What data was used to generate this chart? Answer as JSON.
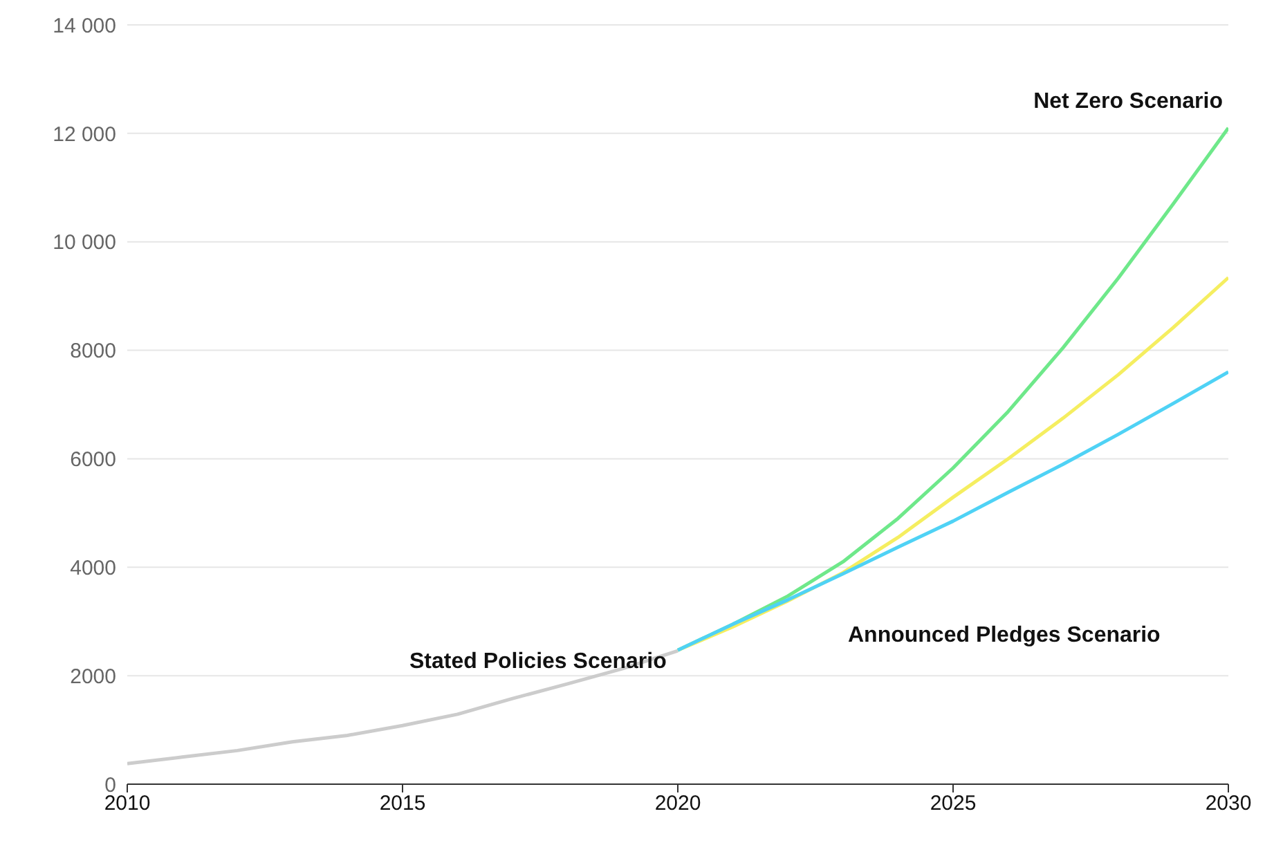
{
  "chart_data": {
    "type": "line",
    "xlim": [
      2010,
      2030
    ],
    "xticks": [
      2010,
      2015,
      2020,
      2025,
      2030
    ],
    "ylim": [
      0,
      14000
    ],
    "yticks": [
      0,
      2000,
      4000,
      6000,
      8000,
      {
        "value": 10000,
        "label": "10 000"
      },
      {
        "value": 12000,
        "label": "12 000"
      },
      {
        "value": 14000,
        "label": "14 000"
      }
    ],
    "grid": "y",
    "marker": "none",
    "line_style": "solid",
    "series": [
      {
        "color": "#cccccc",
        "x": [
          2010,
          2011,
          2012,
          2013,
          2014,
          2015,
          2016,
          2017,
          2018,
          2019,
          2020
        ],
        "values": [
          380,
          500,
          620,
          780,
          900,
          1080,
          1290,
          1580,
          1850,
          2130,
          2460
        ]
      },
      {
        "name": "Net Zero Scenario",
        "color": "#6ee88a",
        "x": [
          2020,
          2021,
          2022,
          2023,
          2024,
          2025,
          2026,
          2027,
          2028,
          2029,
          2030
        ],
        "values": [
          2470,
          2950,
          3470,
          4100,
          4900,
          5830,
          6870,
          8050,
          9330,
          10700,
          12100
        ]
      },
      {
        "color": "#f5ee60",
        "x": [
          2020,
          2021,
          2022,
          2023,
          2024,
          2025,
          2026,
          2027,
          2028,
          2029,
          2030
        ],
        "values": [
          2470,
          2900,
          3380,
          3900,
          4550,
          5290,
          6000,
          6750,
          7550,
          8420,
          9340
        ]
      },
      {
        "color": "#4fd2f5",
        "x": [
          2020,
          2021,
          2022,
          2023,
          2024,
          2025,
          2026,
          2027,
          2028,
          2029,
          2030
        ],
        "values": [
          2470,
          2950,
          3400,
          3880,
          4370,
          4850,
          5380,
          5900,
          6450,
          7020,
          7600
        ]
      }
    ],
    "annotations": [
      "Stated Policies Scenario",
      "Announced Pledges Scenario"
    ]
  }
}
